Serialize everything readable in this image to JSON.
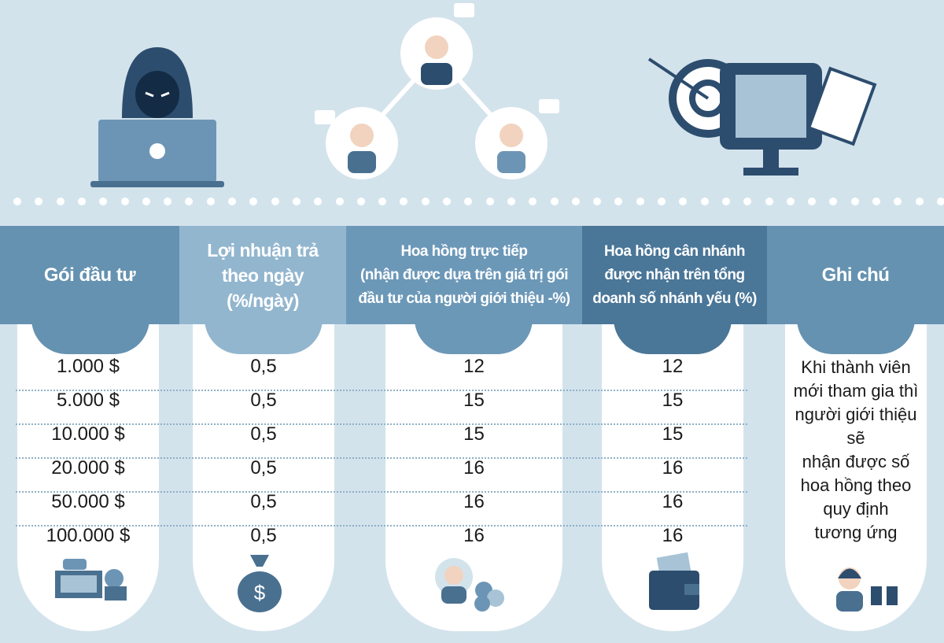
{
  "colors": {
    "background": "#d3e3ec",
    "header_1": "#6592b0",
    "header_2": "#93b6cf",
    "header_3": "#6c98b8",
    "header_4": "#4a7698",
    "header_5": "#6592b0",
    "icon": "#4a7090"
  },
  "illustrations": [
    "hacker-laptop-icon",
    "referral-network-icon",
    "target-monitor-icon"
  ],
  "table": {
    "headers": [
      "Gói đầu tư",
      "Lợi nhuận trả theo ngày (%/ngày)",
      "Hoa hồng trực tiếp (nhận được dựa trên giá trị gói đầu tư của người giới thiệu -%)",
      "Hoa hồng cân nhánh được nhận trên tổng doanh số nhánh yếu (%)",
      "Ghi chú"
    ],
    "header_lines": [
      [
        "Gói đầu tư"
      ],
      [
        "Lợi nhuận trả",
        "theo ngày",
        "(%/ngày)"
      ],
      [
        "Hoa hồng trực tiếp",
        "(nhận được dựa trên giá trị gói",
        "đầu tư của người giới thiệu -%)"
      ],
      [
        "Hoa hồng cân nhánh",
        "được nhận trên tổng",
        "doanh số nhánh yếu (%)"
      ],
      [
        "Ghi chú"
      ]
    ],
    "rows": [
      [
        "1.000 $",
        "0,5",
        "12",
        "12"
      ],
      [
        "5.000 $",
        "0,5",
        "15",
        "15"
      ],
      [
        "10.000 $",
        "0,5",
        "15",
        "15"
      ],
      [
        "20.000 $",
        "0,5",
        "16",
        "16"
      ],
      [
        "50.000 $",
        "0,5",
        "16",
        "16"
      ],
      [
        "100.000 $",
        "0,5",
        "16",
        "16"
      ]
    ],
    "note_lines": [
      "Khi thành viên",
      "mới tham gia thì",
      "người giới thiệu sẽ",
      "nhận được số",
      "hoa hồng theo",
      "quy định",
      "tương ứng"
    ],
    "column_icons": [
      "money-stack-icon",
      "money-bag-icon",
      "person-coins-icon",
      "wallet-icon",
      "person-gift-icon"
    ]
  }
}
